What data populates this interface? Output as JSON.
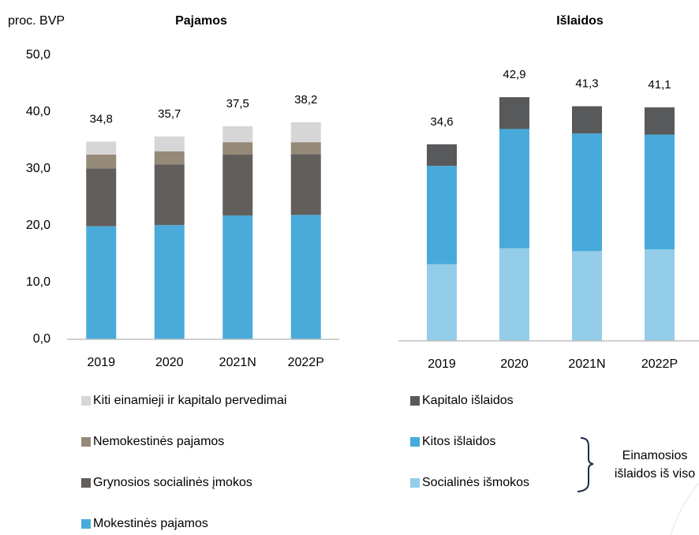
{
  "chart_data": [
    {
      "type": "stacked-bar",
      "title": "Pajamos",
      "ylabel": "proc. BVP",
      "categories": [
        "2019",
        "2020",
        "2021N",
        "2022P"
      ],
      "series": [
        {
          "name": "Mokestinės pajamos",
          "color": "#4aabdb",
          "values": [
            19.9,
            20.1,
            21.8,
            21.9
          ]
        },
        {
          "name": "Grynosios socialinės įmokos",
          "color": "#625e5c",
          "values": [
            10.2,
            10.7,
            10.7,
            10.7
          ]
        },
        {
          "name": "Nemokestinės pajamos",
          "color": "#958a78",
          "values": [
            2.4,
            2.3,
            2.2,
            2.1
          ]
        },
        {
          "name": "Kiti einamieji ir kapitalo pervedimai",
          "color": "#d6d6d6",
          "values": [
            2.3,
            2.6,
            2.8,
            3.5
          ]
        }
      ],
      "totals": [
        34.8,
        35.7,
        37.5,
        38.2
      ],
      "total_labels": [
        "34,8",
        "35,7",
        "37,5",
        "38,2"
      ],
      "ylim": [
        0,
        50
      ],
      "yticks": [
        {
          "value": 0,
          "label": "0,0"
        },
        {
          "value": 10,
          "label": "10,0"
        },
        {
          "value": 20,
          "label": "20,0"
        },
        {
          "value": 30,
          "label": "30,0"
        },
        {
          "value": 40,
          "label": "40,0"
        },
        {
          "value": 50,
          "label": "50,0"
        }
      ]
    },
    {
      "type": "stacked-bar",
      "title": "Išlaidos",
      "categories": [
        "2019",
        "2020",
        "2021N",
        "2022P"
      ],
      "series": [
        {
          "name": "Socialinės išmokos",
          "color": "#93cde9",
          "values": [
            13.5,
            16.3,
            15.8,
            16.1
          ]
        },
        {
          "name": "Kitos išlaidos",
          "color": "#47aadb",
          "values": [
            17.3,
            21.0,
            20.7,
            20.2
          ]
        },
        {
          "name": "Kapitalo išlaidos",
          "color": "#58595b",
          "values": [
            3.8,
            5.6,
            4.8,
            4.8
          ]
        }
      ],
      "totals": [
        34.6,
        42.9,
        41.3,
        41.1
      ],
      "total_labels": [
        "34,6",
        "42,9",
        "41,3",
        "41,1"
      ],
      "ylim": [
        0,
        50
      ],
      "annotation": [
        "Einamosios",
        "išlaidos iš viso"
      ]
    }
  ]
}
